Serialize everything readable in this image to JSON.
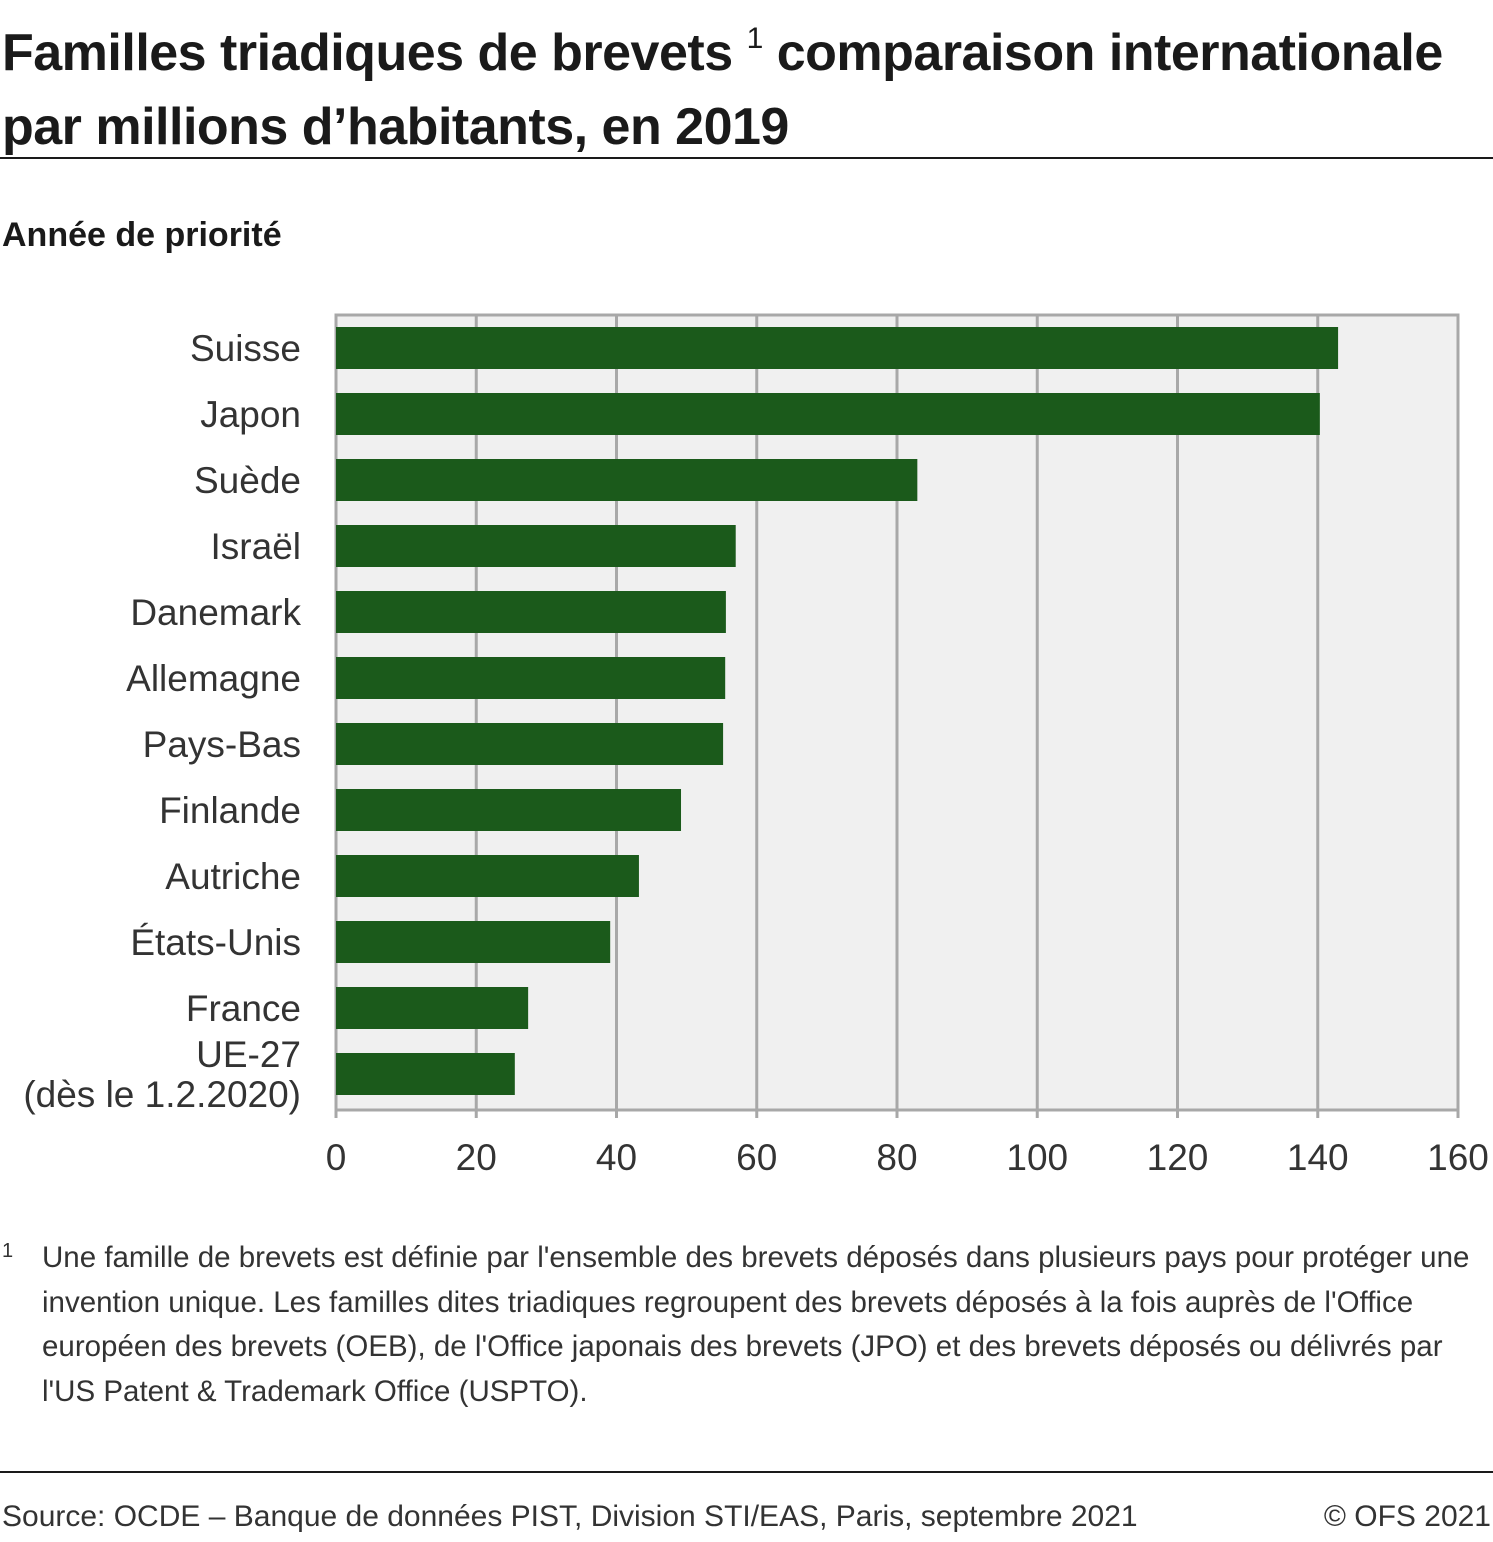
{
  "header": {
    "title_part1": "Familles triadiques de brevets",
    "title_sup": "1",
    "title_part2": " comparaison internationale par millions d’habitants, en 2019",
    "subtitle": "Année de priorité"
  },
  "chart_data": {
    "type": "bar",
    "orientation": "horizontal",
    "categories": [
      "Suisse",
      "Japon",
      "Suède",
      "Israël",
      "Danemark",
      "Allemagne",
      "Pays-Bas",
      "Finlande",
      "Autriche",
      "États-Unis",
      "France",
      "UE-27 (dès le 1.2.2020)"
    ],
    "category_lines": [
      [
        "Suisse"
      ],
      [
        "Japon"
      ],
      [
        "Suède"
      ],
      [
        "Israël"
      ],
      [
        "Danemark"
      ],
      [
        "Allemagne"
      ],
      [
        "Pays-Bas"
      ],
      [
        "Finlande"
      ],
      [
        "Autriche"
      ],
      [
        "États-Unis"
      ],
      [
        "France"
      ],
      [
        "UE-27",
        "(dès le 1.2.2020)"
      ]
    ],
    "values": [
      142.9,
      140.3,
      82.9,
      57.0,
      55.6,
      55.5,
      55.2,
      49.2,
      43.2,
      39.1,
      27.4,
      25.5
    ],
    "xlim": [
      0,
      160
    ],
    "xticks": [
      "0",
      "20",
      "40",
      "60",
      "80",
      "100",
      "120",
      "140",
      "160"
    ],
    "title": "Familles triadiques de brevets comparaison internationale par millions d’habitants, en 2019",
    "xlabel": "",
    "ylabel": "",
    "grid": true,
    "colors": {
      "bar": "#1b5a1b",
      "plot_bg": "#f0f0f0",
      "grid": "#a8a8a8"
    }
  },
  "footnote": {
    "mark": "1",
    "text": "Une famille de brevets est définie par l'ensemble des brevets déposés dans plusieurs pays pour protéger une invention unique. Les familles dites triadiques regroupent des brevets déposés à la fois auprès de l'Office européen des brevets (OEB), de l'Office japonais des brevets (JPO) et des brevets déposés ou délivrés par l'US Patent & Trademark Office (USPTO)."
  },
  "footer": {
    "source": "Source: OCDE – Banque de données PIST, Division STI/EAS, Paris, septembre 2021",
    "copyright": "© OFS 2021"
  }
}
